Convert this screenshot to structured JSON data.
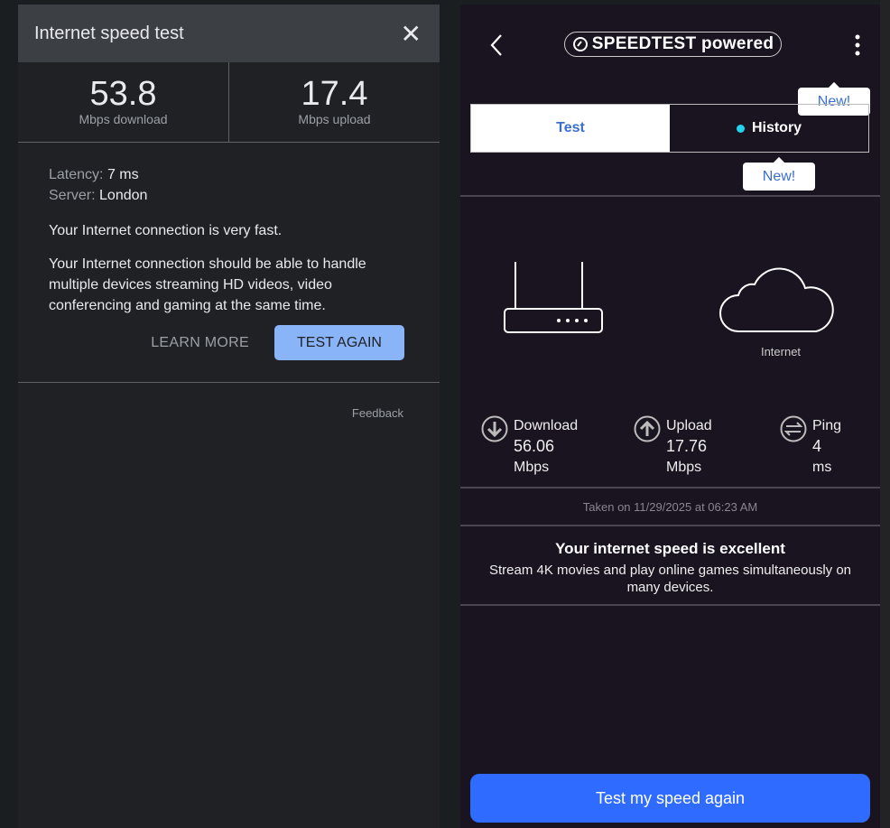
{
  "left": {
    "title": "Internet speed test",
    "download": {
      "value": "53.8",
      "unit": "Mbps download"
    },
    "upload": {
      "value": "17.4",
      "unit": "Mbps upload"
    },
    "latency_label": "Latency:",
    "latency": "7 ms",
    "server_label": "Server:",
    "server": "London",
    "summary": "Your Internet connection is very fast.",
    "detail": "Your Internet connection should be able to handle multiple devices streaming HD videos, video conferencing and gaming at the same time.",
    "learn_more": "LEARN MORE",
    "test_again": "TEST AGAIN",
    "feedback": "Feedback"
  },
  "right": {
    "logo": "SPEEDTEST powered",
    "tabs": [
      {
        "label": "Test",
        "active": true
      },
      {
        "label": "History",
        "active": false
      }
    ],
    "tip": "New!",
    "internet_label": "Internet",
    "download": {
      "label": "Download",
      "value": "56.06",
      "unit": "Mbps"
    },
    "upload": {
      "label": "Upload",
      "value": "17.76",
      "unit": "Mbps"
    },
    "ping": {
      "label": "Ping",
      "value": "4",
      "unit": "ms"
    },
    "taken": "Taken on 11/29/2025 at 06:23 AM",
    "result_title": "Your internet speed is excellent",
    "result_text": "Stream 4K movies and play online games simultaneously on many devices.",
    "button": "Test my speed again",
    "accent": "#2f6bff",
    "dot_color": "#22d3ee"
  }
}
